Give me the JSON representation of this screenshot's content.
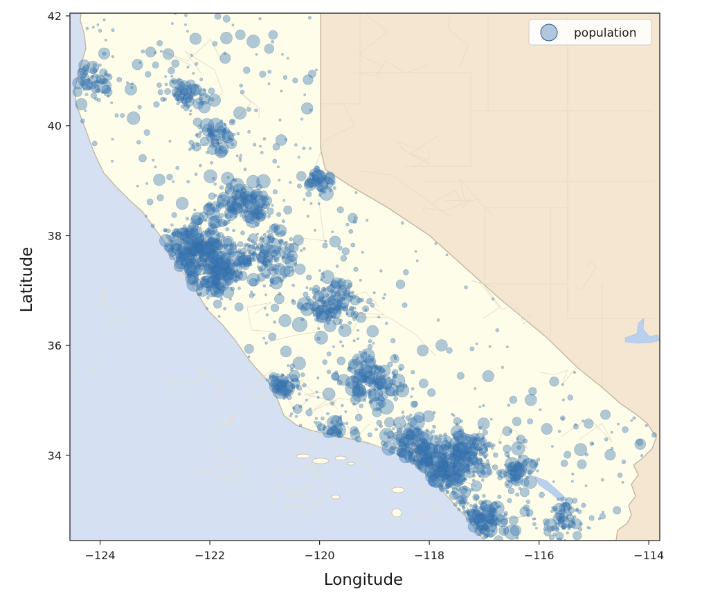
{
  "chart_data": {
    "type": "scatter",
    "background": "map",
    "title": "",
    "xlabel": "Longitude",
    "ylabel": "Latitude",
    "xlim": [
      -124.55,
      -113.8
    ],
    "ylim": [
      32.45,
      42.05
    ],
    "x_ticks": [
      -124,
      -122,
      -120,
      -118,
      -116,
      -114
    ],
    "x_tick_labels": [
      "−124",
      "−122",
      "−120",
      "−118",
      "−116",
      "−114"
    ],
    "y_ticks": [
      34,
      36,
      38,
      40,
      42
    ],
    "y_tick_labels": [
      "34",
      "36",
      "38",
      "40",
      "42"
    ],
    "grid": false,
    "legend": {
      "placement": "top-right",
      "entries": [
        "population"
      ]
    },
    "series": [
      {
        "name": "population",
        "marker": "circle",
        "color": "#3c78b4",
        "alpha": 0.4,
        "clusters": [
          {
            "lon": -122.3,
            "lat": 37.8,
            "density": "very high"
          },
          {
            "lon": -121.9,
            "lat": 37.35,
            "density": "very high"
          },
          {
            "lon": -121.4,
            "lat": 38.6,
            "density": "high"
          },
          {
            "lon": -119.8,
            "lat": 36.75,
            "density": "high"
          },
          {
            "lon": -119.0,
            "lat": 35.35,
            "density": "high"
          },
          {
            "lon": -118.25,
            "lat": 34.05,
            "density": "very high"
          },
          {
            "lon": -117.85,
            "lat": 33.7,
            "density": "very high"
          },
          {
            "lon": -117.15,
            "lat": 32.75,
            "density": "very high"
          },
          {
            "lon": -117.3,
            "lat": 34.05,
            "density": "high"
          },
          {
            "lon": -116.4,
            "lat": 33.75,
            "density": "medium"
          },
          {
            "lon": -121.0,
            "lat": 37.65,
            "density": "high"
          },
          {
            "lon": -122.4,
            "lat": 40.58,
            "density": "medium"
          },
          {
            "lon": -124.15,
            "lat": 40.8,
            "density": "medium"
          },
          {
            "lon": -119.7,
            "lat": 34.42,
            "density": "medium"
          },
          {
            "lon": -120.65,
            "lat": 35.28,
            "density": "medium"
          },
          {
            "lon": -121.85,
            "lat": 39.75,
            "density": "medium"
          },
          {
            "lon": -120.0,
            "lat": 38.95,
            "density": "medium"
          },
          {
            "lon": -115.55,
            "lat": 32.8,
            "density": "medium"
          }
        ]
      }
    ]
  },
  "map": {
    "colors": {
      "ocean": "#d5e1f3",
      "land_focus": "#fefdea",
      "land_neighbor": "#f5e6d1",
      "borders": "#c4b7a6",
      "county_lines": "#e6dcc4",
      "points": "#3c78b4",
      "points_edge": "#255a8f",
      "links": "#222222"
    }
  }
}
